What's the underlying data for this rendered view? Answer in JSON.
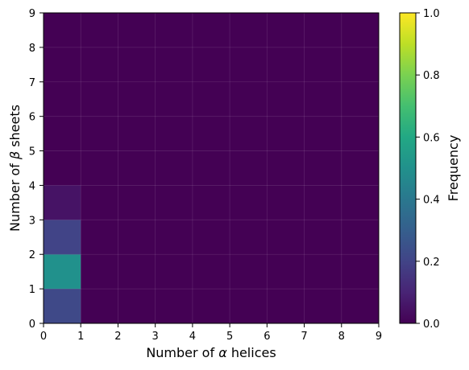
{
  "chart_data": {
    "type": "heatmap",
    "xlabel_prefix": "Number of ",
    "xlabel_symbol": "α",
    "xlabel_suffix": " helices",
    "ylabel_prefix": "Number of ",
    "ylabel_symbol": "β",
    "ylabel_suffix": " sheets",
    "x_ticks": [
      "0",
      "1",
      "2",
      "3",
      "4",
      "5",
      "6",
      "7",
      "8",
      "9"
    ],
    "y_ticks": [
      "0",
      "1",
      "2",
      "3",
      "4",
      "5",
      "6",
      "7",
      "8",
      "9"
    ],
    "xlim": [
      0,
      9
    ],
    "ylim": [
      0,
      9
    ],
    "colorbar_label": "Frequency",
    "colorbar_ticks": [
      "0.0",
      "0.2",
      "0.4",
      "0.6",
      "0.8",
      "1.0"
    ],
    "colorbar_range": [
      0,
      1
    ],
    "colormap": "viridis",
    "grid": true,
    "cells": [
      {
        "x": 0,
        "y": 0,
        "value": 0.22
      },
      {
        "x": 0,
        "y": 1,
        "value": 0.5
      },
      {
        "x": 0,
        "y": 2,
        "value": 0.2
      },
      {
        "x": 0,
        "y": 3,
        "value": 0.05
      }
    ],
    "background_value": 0.0
  }
}
